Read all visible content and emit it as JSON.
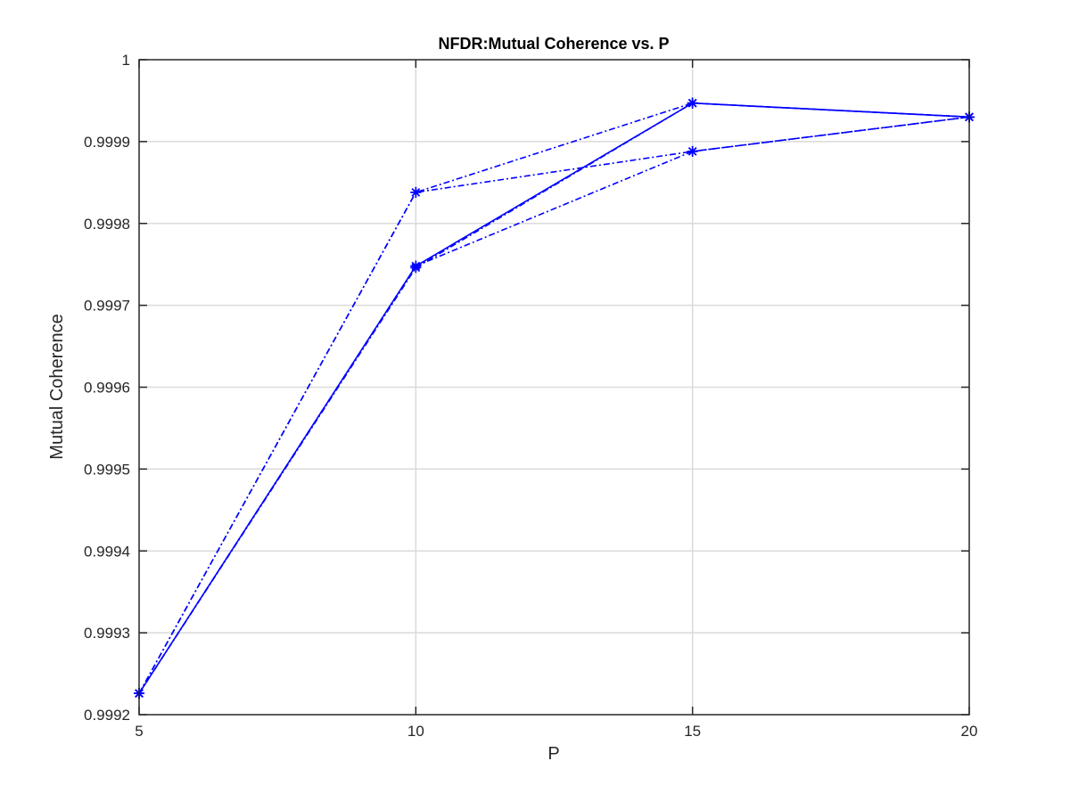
{
  "chart_data": {
    "type": "line",
    "title": "NFDR:Mutual Coherence vs. P",
    "xlabel": "P",
    "ylabel": "Mutual Coherence",
    "xlim": [
      5,
      20
    ],
    "ylim": [
      0.9992,
      1
    ],
    "x_ticks": [
      5,
      10,
      15,
      20
    ],
    "x_tick_labels": [
      "5",
      "10",
      "15",
      "20"
    ],
    "y_ticks": [
      0.9992,
      0.9993,
      0.9994,
      0.9995,
      0.9996,
      0.9997,
      0.9998,
      0.9999,
      1
    ],
    "y_tick_labels": [
      "0.9992",
      "0.9993",
      "0.9994",
      "0.9995",
      "0.9996",
      "0.9997",
      "0.9998",
      "0.9999",
      "1"
    ],
    "grid": true,
    "legend": "none",
    "marker": "asterisk",
    "series": [
      {
        "x": [
          5,
          10,
          15,
          20
        ],
        "values": [
          0.999226,
          0.999838,
          0.999947,
          0.99993
        ],
        "color": "#0000ff",
        "line_style": "dashdot"
      },
      {
        "x": [
          5,
          10,
          15,
          20
        ],
        "values": [
          0.999226,
          0.999748,
          0.999947,
          0.99993
        ],
        "color": "#0000ff",
        "line_style": "solid"
      },
      {
        "x": [
          5,
          10,
          15,
          20
        ],
        "values": [
          0.999226,
          0.999746,
          0.999947,
          0.99993
        ],
        "color": "#0000ff",
        "line_style": "dashdot"
      },
      {
        "x": [
          5,
          10,
          15,
          20
        ],
        "values": [
          0.999226,
          0.999838,
          0.999888,
          0.99993
        ],
        "color": "#0000ff",
        "line_style": "dashdot"
      },
      {
        "x": [
          5,
          10,
          15,
          20
        ],
        "values": [
          0.999226,
          0.999748,
          0.999888,
          0.99993
        ],
        "color": "#0000ff",
        "line_style": "dashdot"
      }
    ]
  }
}
